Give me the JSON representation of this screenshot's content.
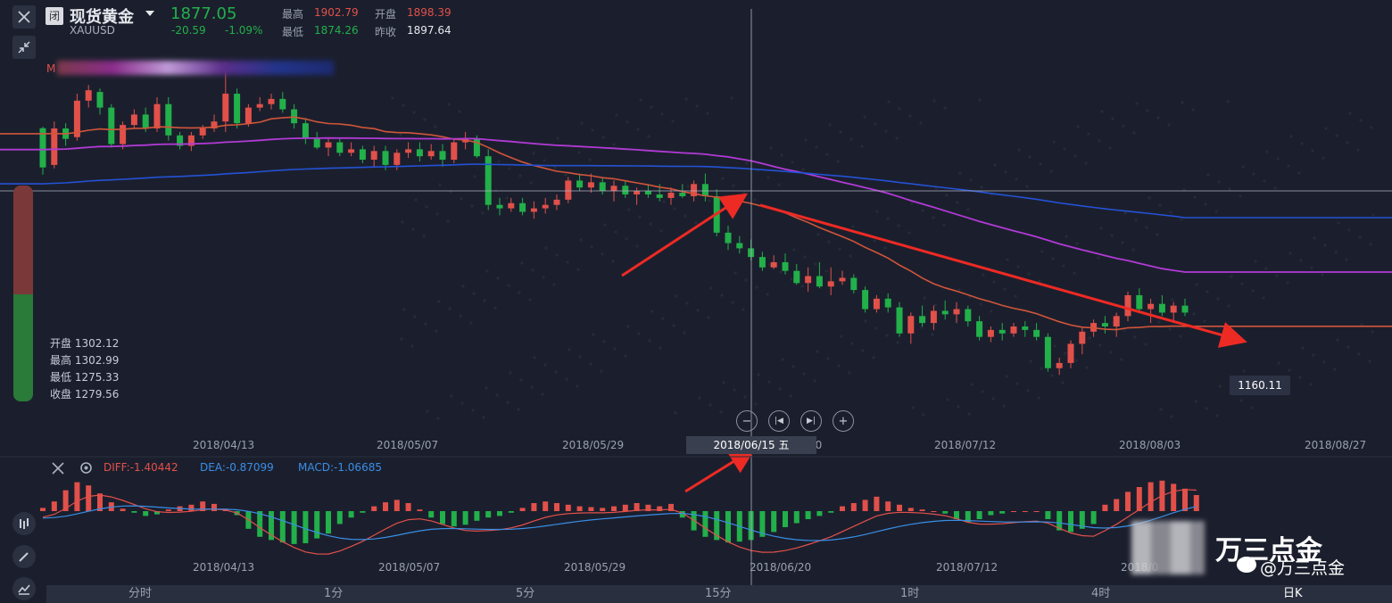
{
  "header": {
    "close_icon": "close-icon",
    "market_badge": "闭",
    "title": "现货黄金",
    "symbol": "XAUUSD",
    "price": "1877.05",
    "change": "-20.59",
    "change_pct": "-1.09%",
    "high_label": "最高",
    "high_value": "1902.79",
    "open_label": "开盘",
    "open_value": "1898.39",
    "low_label": "最低",
    "low_value": "1874.26",
    "prev_label": "昨收",
    "prev_value": "1897.64"
  },
  "ma_label": "M",
  "ohlc_panel": {
    "open": "开盘 1302.12",
    "high": "最高 1302.99",
    "low": "最低 1275.33",
    "close": "收盘 1279.56"
  },
  "crosshair_date": "2018/06/15 五",
  "low_price_tag": "1160.11",
  "main_dates": [
    "2018/04/13",
    "2018/05/07",
    "2018/05/29",
    "/20",
    "2018/07/12",
    "2018/08/03",
    "2018/08/27"
  ],
  "macd": {
    "diff": "DIFF:-1.40442",
    "dea": "DEA:-0.87099",
    "macd": "MACD:-1.06685"
  },
  "macd_dates": [
    "2018/04/13",
    "2018/05/07",
    "2018/05/29",
    "2018/06/20",
    "2018/07/12",
    "2018/08/03"
  ],
  "macd_dates_cut": "2018/0",
  "timeframes": [
    "分时",
    "1分",
    "5分",
    "15分",
    "1时",
    "4时",
    "日K"
  ],
  "watermark": {
    "brand": "万三点金",
    "handle": "@万三点金"
  },
  "colors": {
    "up": "#e2504a",
    "down": "#22b04a",
    "ma_orange": "#d2553a",
    "ma_purple": "#b23ad6",
    "ma_blue": "#2452d6",
    "diff": "#e2504a",
    "dea": "#3a8ee6",
    "background": "#1b1f2d"
  },
  "chart_data": {
    "type": "candlestick",
    "price_range": [
      1150,
      1340
    ],
    "candles_ohlc": [
      [
        1302.12,
        1302.99,
        1275.33,
        1279.56
      ],
      [
        1281,
        1306,
        1279,
        1302
      ],
      [
        1302,
        1305,
        1292,
        1296
      ],
      [
        1297,
        1322,
        1295,
        1318
      ],
      [
        1318,
        1327,
        1314,
        1324
      ],
      [
        1323,
        1325,
        1310,
        1314
      ],
      [
        1314,
        1316,
        1291,
        1293
      ],
      [
        1293,
        1306,
        1290,
        1304
      ],
      [
        1304,
        1313,
        1302,
        1310
      ],
      [
        1310,
        1314,
        1300,
        1302
      ],
      [
        1302,
        1320,
        1300,
        1316
      ],
      [
        1316,
        1320,
        1295,
        1298
      ],
      [
        1298,
        1300,
        1290,
        1292
      ],
      [
        1292,
        1300,
        1289,
        1298
      ],
      [
        1298,
        1304,
        1296,
        1302
      ],
      [
        1302,
        1310,
        1300,
        1306
      ],
      [
        1306,
        1340,
        1300,
        1322
      ],
      [
        1322,
        1325,
        1302,
        1305
      ],
      [
        1305,
        1316,
        1303,
        1314
      ],
      [
        1314,
        1320,
        1312,
        1316
      ],
      [
        1316,
        1322,
        1313,
        1319
      ],
      [
        1319,
        1323,
        1311,
        1313
      ],
      [
        1313,
        1316,
        1302,
        1305
      ],
      [
        1305,
        1308,
        1293,
        1296
      ],
      [
        1296,
        1300,
        1290,
        1291
      ],
      [
        1291,
        1296,
        1286,
        1294
      ],
      [
        1294,
        1296,
        1286,
        1288
      ],
      [
        1288,
        1294,
        1286,
        1290
      ],
      [
        1290,
        1292,
        1282,
        1284
      ],
      [
        1284,
        1292,
        1280,
        1289
      ],
      [
        1289,
        1292,
        1278,
        1281
      ],
      [
        1281,
        1290,
        1278,
        1288
      ],
      [
        1288,
        1294,
        1285,
        1290
      ],
      [
        1290,
        1294,
        1283,
        1286
      ],
      [
        1286,
        1293,
        1284,
        1289
      ],
      [
        1289,
        1293,
        1280,
        1284
      ],
      [
        1284,
        1296,
        1282,
        1294
      ],
      [
        1294,
        1300,
        1290,
        1296
      ],
      [
        1296,
        1298,
        1285,
        1286
      ],
      [
        1286,
        1290,
        1255,
        1258
      ],
      [
        1258,
        1262,
        1252,
        1256
      ],
      [
        1256,
        1262,
        1254,
        1259
      ],
      [
        1259,
        1262,
        1252,
        1254
      ],
      [
        1254,
        1260,
        1250,
        1256
      ],
      [
        1256,
        1262,
        1253,
        1258
      ],
      [
        1258,
        1264,
        1255,
        1261
      ],
      [
        1261,
        1274,
        1259,
        1272
      ],
      [
        1272,
        1276,
        1266,
        1268
      ],
      [
        1268,
        1276,
        1265,
        1271
      ],
      [
        1271,
        1274,
        1264,
        1266
      ],
      [
        1266,
        1272,
        1260,
        1269
      ],
      [
        1269,
        1272,
        1262,
        1264
      ],
      [
        1264,
        1268,
        1258,
        1266
      ],
      [
        1266,
        1270,
        1262,
        1264
      ],
      [
        1264,
        1270,
        1260,
        1262
      ],
      [
        1262,
        1268,
        1258,
        1265
      ],
      [
        1265,
        1270,
        1262,
        1263
      ],
      [
        1263,
        1272,
        1260,
        1270
      ],
      [
        1270,
        1276,
        1260,
        1263
      ],
      [
        1263,
        1267,
        1240,
        1242
      ],
      [
        1242,
        1246,
        1232,
        1236
      ],
      [
        1236,
        1240,
        1230,
        1233
      ],
      [
        1233,
        1238,
        1226,
        1228
      ],
      [
        1228,
        1231,
        1220,
        1222
      ],
      [
        1222,
        1229,
        1221,
        1225
      ],
      [
        1225,
        1230,
        1218,
        1220
      ],
      [
        1220,
        1224,
        1212,
        1213
      ],
      [
        1213,
        1222,
        1208,
        1217
      ],
      [
        1217,
        1225,
        1210,
        1211
      ],
      [
        1211,
        1222,
        1206,
        1214
      ],
      [
        1214,
        1220,
        1212,
        1216
      ],
      [
        1216,
        1218,
        1207,
        1209
      ],
      [
        1209,
        1211,
        1196,
        1198
      ],
      [
        1198,
        1206,
        1196,
        1204
      ],
      [
        1204,
        1207,
        1196,
        1199
      ],
      [
        1199,
        1202,
        1182,
        1184
      ],
      [
        1184,
        1196,
        1178,
        1194
      ],
      [
        1194,
        1200,
        1188,
        1190
      ],
      [
        1190,
        1200,
        1186,
        1197
      ],
      [
        1197,
        1203,
        1192,
        1195
      ],
      [
        1195,
        1202,
        1190,
        1198
      ],
      [
        1198,
        1200,
        1188,
        1191
      ],
      [
        1191,
        1194,
        1180,
        1182
      ],
      [
        1182,
        1188,
        1179,
        1186
      ],
      [
        1186,
        1190,
        1180,
        1184
      ],
      [
        1184,
        1190,
        1182,
        1188
      ],
      [
        1188,
        1191,
        1182,
        1186
      ],
      [
        1186,
        1190,
        1180,
        1182
      ],
      [
        1182,
        1184,
        1162,
        1164
      ],
      [
        1164,
        1170,
        1160.11,
        1167
      ],
      [
        1167,
        1180,
        1164,
        1178
      ],
      [
        1178,
        1188,
        1172,
        1185
      ],
      [
        1185,
        1192,
        1182,
        1190
      ],
      [
        1190,
        1194,
        1184,
        1188
      ],
      [
        1188,
        1196,
        1182,
        1194
      ],
      [
        1194,
        1208,
        1191,
        1206
      ],
      [
        1206,
        1210,
        1196,
        1198
      ],
      [
        1198,
        1204,
        1190,
        1201
      ],
      [
        1201,
        1206,
        1194,
        1196
      ],
      [
        1196,
        1202,
        1190,
        1200
      ],
      [
        1200,
        1204,
        1194,
        1196
      ]
    ],
    "macd_hist": [
      0.4,
      1.2,
      2.6,
      3.6,
      3.2,
      2.2,
      1.1,
      0.3,
      -0.2,
      -0.6,
      -0.4,
      0.2,
      0.6,
      0.8,
      1.2,
      0.9,
      0.3,
      -0.5,
      -2.2,
      -3.2,
      -3.6,
      -3.9,
      -4.1,
      -4.0,
      -3.4,
      -2.8,
      -1.6,
      -0.8,
      -0.2,
      0.6,
      1.1,
      1.4,
      1.0,
      0.2,
      -0.8,
      -1.6,
      -1.9,
      -1.7,
      -1.2,
      -0.8,
      -0.6,
      -0.2,
      0.4,
      1.0,
      1.2,
      1.0,
      0.8,
      0.6,
      0.5,
      0.4,
      0.6,
      0.8,
      1.0,
      0.8,
      0.6,
      0.9,
      -0.8,
      -2.4,
      -3.2,
      -3.6,
      -3.9,
      -3.8,
      -3.6,
      -3.2,
      -2.6,
      -2.0,
      -1.5,
      -1.0,
      -0.6,
      -0.2,
      0.6,
      1.0,
      1.4,
      1.8,
      1.2,
      0.8,
      0.4,
      0.2,
      0.0,
      -0.3,
      -1.0,
      -1.4,
      -1.0,
      -0.5,
      -0.3,
      0.0,
      0.0,
      0.0,
      -1.0,
      -2.4,
      -2.6,
      -2.2,
      -1.6,
      0.8,
      1.5,
      2.4,
      3.0,
      3.6,
      3.8,
      3.4,
      2.8,
      2.0
    ]
  }
}
